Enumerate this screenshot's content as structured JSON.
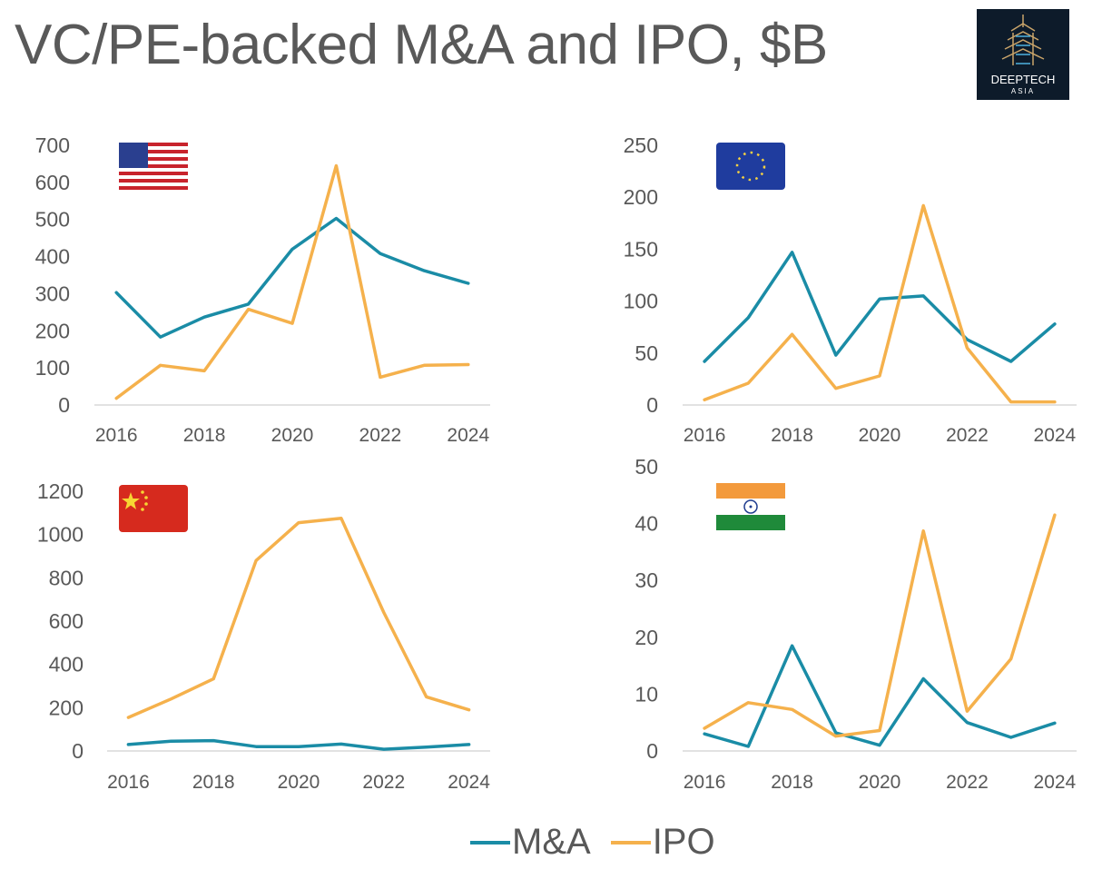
{
  "title": "VC/PE-backed M&A and IPO, $B",
  "logo": {
    "line1": "DEEPTECH",
    "line2": "ASIA"
  },
  "legend": [
    {
      "name": "M&A",
      "color": "#1a8ca6"
    },
    {
      "name": "IPO",
      "color": "#f5b14c"
    }
  ],
  "chart_data": [
    {
      "type": "line",
      "region": "United States",
      "flag_icon": "us-flag-icon",
      "x": [
        2016,
        2017,
        2018,
        2019,
        2020,
        2021,
        2022,
        2023,
        2024
      ],
      "xticks": [
        "2016",
        "2018",
        "2020",
        "2022",
        "2024"
      ],
      "ylim": [
        0,
        700
      ],
      "yticks": [
        0,
        100,
        200,
        300,
        400,
        500,
        600,
        700
      ],
      "series": [
        {
          "name": "M&A",
          "values": [
            303,
            183,
            237,
            272,
            420,
            503,
            408,
            362,
            328
          ]
        },
        {
          "name": "IPO",
          "values": [
            18,
            107,
            92,
            258,
            220,
            645,
            75,
            107,
            109
          ]
        }
      ]
    },
    {
      "type": "line",
      "region": "European Union",
      "flag_icon": "eu-flag-icon",
      "x": [
        2016,
        2017,
        2018,
        2019,
        2020,
        2021,
        2022,
        2023,
        2024
      ],
      "xticks": [
        "2016",
        "2018",
        "2020",
        "2022",
        "2024"
      ],
      "ylim": [
        0,
        250
      ],
      "yticks": [
        0,
        50,
        100,
        150,
        200,
        250
      ],
      "series": [
        {
          "name": "M&A",
          "values": [
            42,
            84,
            147,
            48,
            102,
            105,
            63,
            42,
            78
          ]
        },
        {
          "name": "IPO",
          "values": [
            5,
            21,
            68,
            16,
            28,
            192,
            55,
            3,
            3
          ]
        }
      ]
    },
    {
      "type": "line",
      "region": "China",
      "flag_icon": "china-flag-icon",
      "x": [
        2016,
        2017,
        2018,
        2019,
        2020,
        2021,
        2022,
        2023,
        2024
      ],
      "xticks": [
        "2016",
        "2018",
        "2020",
        "2022",
        "2024"
      ],
      "ylim": [
        0,
        1200
      ],
      "yticks": [
        0,
        200,
        400,
        600,
        800,
        1000,
        1200
      ],
      "series": [
        {
          "name": "M&A",
          "values": [
            30,
            45,
            48,
            20,
            20,
            32,
            8,
            18,
            30
          ]
        },
        {
          "name": "IPO",
          "values": [
            155,
            240,
            333,
            880,
            1055,
            1075,
            640,
            250,
            190
          ]
        }
      ]
    },
    {
      "type": "line",
      "region": "India",
      "flag_icon": "india-flag-icon",
      "x": [
        2016,
        2017,
        2018,
        2019,
        2020,
        2021,
        2022,
        2023,
        2024
      ],
      "xticks": [
        "2016",
        "2018",
        "2020",
        "2022",
        "2024"
      ],
      "ylim": [
        0,
        50
      ],
      "yticks": [
        0,
        10,
        20,
        30,
        40,
        50
      ],
      "series": [
        {
          "name": "M&A",
          "values": [
            3,
            0.8,
            18.5,
            3.2,
            1,
            12.7,
            5,
            2.4,
            4.9
          ]
        },
        {
          "name": "IPO",
          "values": [
            4,
            8.5,
            7.3,
            2.6,
            3.6,
            38.7,
            7,
            16.2,
            41.5
          ]
        }
      ]
    }
  ]
}
